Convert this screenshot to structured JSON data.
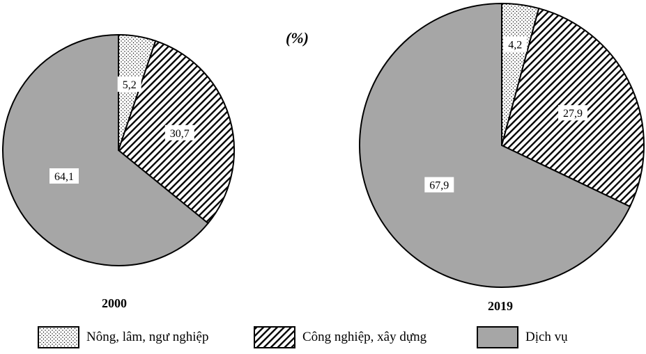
{
  "unit_label": "(%)",
  "chart_data": [
    {
      "type": "pie",
      "year": "2000",
      "slices": [
        {
          "name": "Nông, lâm, ngư nghiệp",
          "value": 5.2,
          "label": "5,2"
        },
        {
          "name": "Công nghiệp, xây dựng",
          "value": 30.7,
          "label": "30,7"
        },
        {
          "name": "Dịch vụ",
          "value": 64.1,
          "label": "64,1"
        }
      ]
    },
    {
      "type": "pie",
      "year": "2019",
      "slices": [
        {
          "name": "Nông, lâm, ngư nghiệp",
          "value": 4.2,
          "label": "4,2"
        },
        {
          "name": "Công nghiệp, xây dựng",
          "value": 27.9,
          "label": "27,9"
        },
        {
          "name": "Dịch vụ",
          "value": 67.9,
          "label": "67,9"
        }
      ]
    }
  ],
  "legend": [
    {
      "label": "Nông, lâm, ngư nghiệp",
      "fill": "dots"
    },
    {
      "label": "Công nghiệp, xây dựng",
      "fill": "hatch"
    },
    {
      "label": "Dịch vụ",
      "fill": "gray"
    }
  ],
  "colors": {
    "service_fill": "#a6a6a6",
    "stroke": "#000000",
    "label_bg": "#ffffff"
  }
}
